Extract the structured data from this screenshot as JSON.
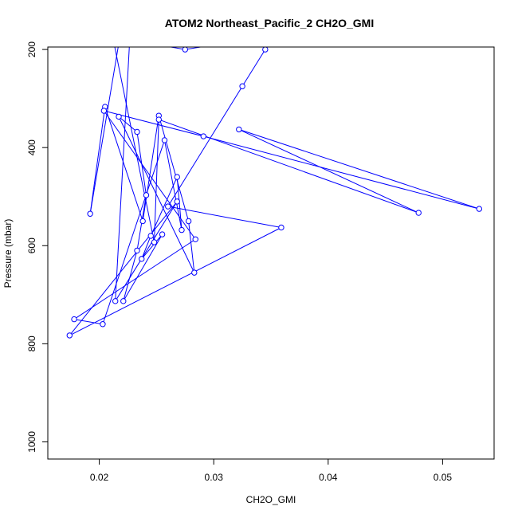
{
  "chart_data": {
    "type": "line",
    "title": "ATOM2 Northeast_Pacific_2 CH2O_GMI",
    "xlabel": "CH2O_GMI",
    "ylabel": "Pressure (mbar)",
    "xlim": [
      0.0155,
      0.0545
    ],
    "ylim": [
      1035,
      195
    ],
    "y_reversed": true,
    "x_ticks": [
      0.02,
      0.03,
      0.04,
      0.05
    ],
    "x_tick_labels": [
      "0.02",
      "0.03",
      "0.04",
      "0.05"
    ],
    "y_ticks": [
      200,
      400,
      600,
      800,
      1000
    ],
    "y_tick_labels": [
      "200",
      "400",
      "600",
      "800",
      "1000"
    ],
    "grid": false,
    "series_color": "#0000ff",
    "series": [
      {
        "x": [
          0.0219,
          0.0192,
          0.0205,
          0.0238,
          0.0252,
          0.0278,
          0.0283,
          0.0217,
          0.0233,
          0.0241,
          0.0233,
          0.0221,
          0.0255,
          0.0237,
          0.0245,
          0.0268,
          0.0272,
          0.0257,
          0.0203,
          0.0178,
          0.0284,
          0.0204,
          0.0291,
          0.0532,
          0.0322,
          0.0479,
          0.0252,
          0.0248,
          0.0207,
          0.0225,
          0.0228,
          0.0214,
          0.0268,
          0.0174,
          0.0359,
          0.026,
          0.0325,
          0.0345,
          0.0342,
          0.0275,
          0.0213,
          0.0218
        ],
        "y": [
          160,
          535,
          317,
          550,
          335,
          550,
          655,
          337,
          368,
          497,
          610,
          713,
          577,
          627,
          580,
          460,
          568,
          385,
          760,
          750,
          587,
          325,
          377,
          525,
          363,
          533,
          343,
          593,
          120,
          145,
          120,
          713,
          510,
          783,
          563,
          520,
          275,
          200,
          175,
          200,
          175,
          155
        ]
      }
    ]
  }
}
